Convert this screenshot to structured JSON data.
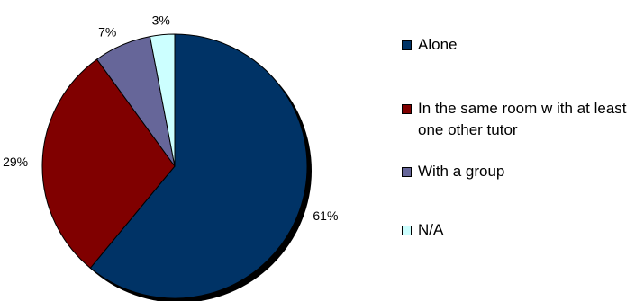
{
  "chart_data": {
    "type": "pie",
    "title": "",
    "categories": [
      "Alone",
      "In the same room w ith at least one other tutor",
      "With a group",
      "N/A"
    ],
    "values": [
      61,
      29,
      7,
      3
    ],
    "value_labels": [
      "61%",
      "29%",
      "7%",
      "3%"
    ],
    "colors": [
      "#003366",
      "#800000",
      "#666699",
      "#ccffff"
    ],
    "legend_position": "right"
  }
}
